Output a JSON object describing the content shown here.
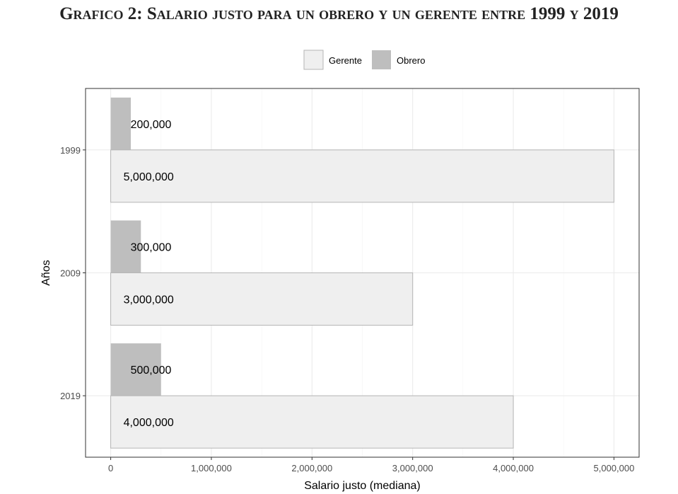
{
  "figure": {
    "title": "Grafico 2: Salario justo para un obrero y un gerente entre 1999 y 2019"
  },
  "chart_data": {
    "type": "bar",
    "orientation": "horizontal",
    "categories": [
      "1999",
      "2009",
      "2019"
    ],
    "series": [
      {
        "name": "Obrero",
        "values": [
          200000,
          300000,
          500000
        ],
        "labels": [
          "200,000",
          "300,000",
          "500,000"
        ],
        "color": "#bebebe"
      },
      {
        "name": "Gerente",
        "values": [
          5000000,
          3000000,
          4000000
        ],
        "labels": [
          "5,000,000",
          "3,000,000",
          "4,000,000"
        ],
        "color": "#efefef"
      }
    ],
    "legend_order": [
      "Gerente",
      "Obrero"
    ],
    "legend_position": "top",
    "xlabel": "Salario justo (mediana)",
    "ylabel": "Años",
    "xlim": [
      -250000,
      5250000
    ],
    "xticks": [
      0,
      1000000,
      2000000,
      3000000,
      4000000,
      5000000
    ],
    "xtick_labels": [
      "0",
      "1,000,000",
      "2,000,000",
      "3,000,000",
      "4,000,000",
      "5,000,000"
    ],
    "grid": true
  }
}
